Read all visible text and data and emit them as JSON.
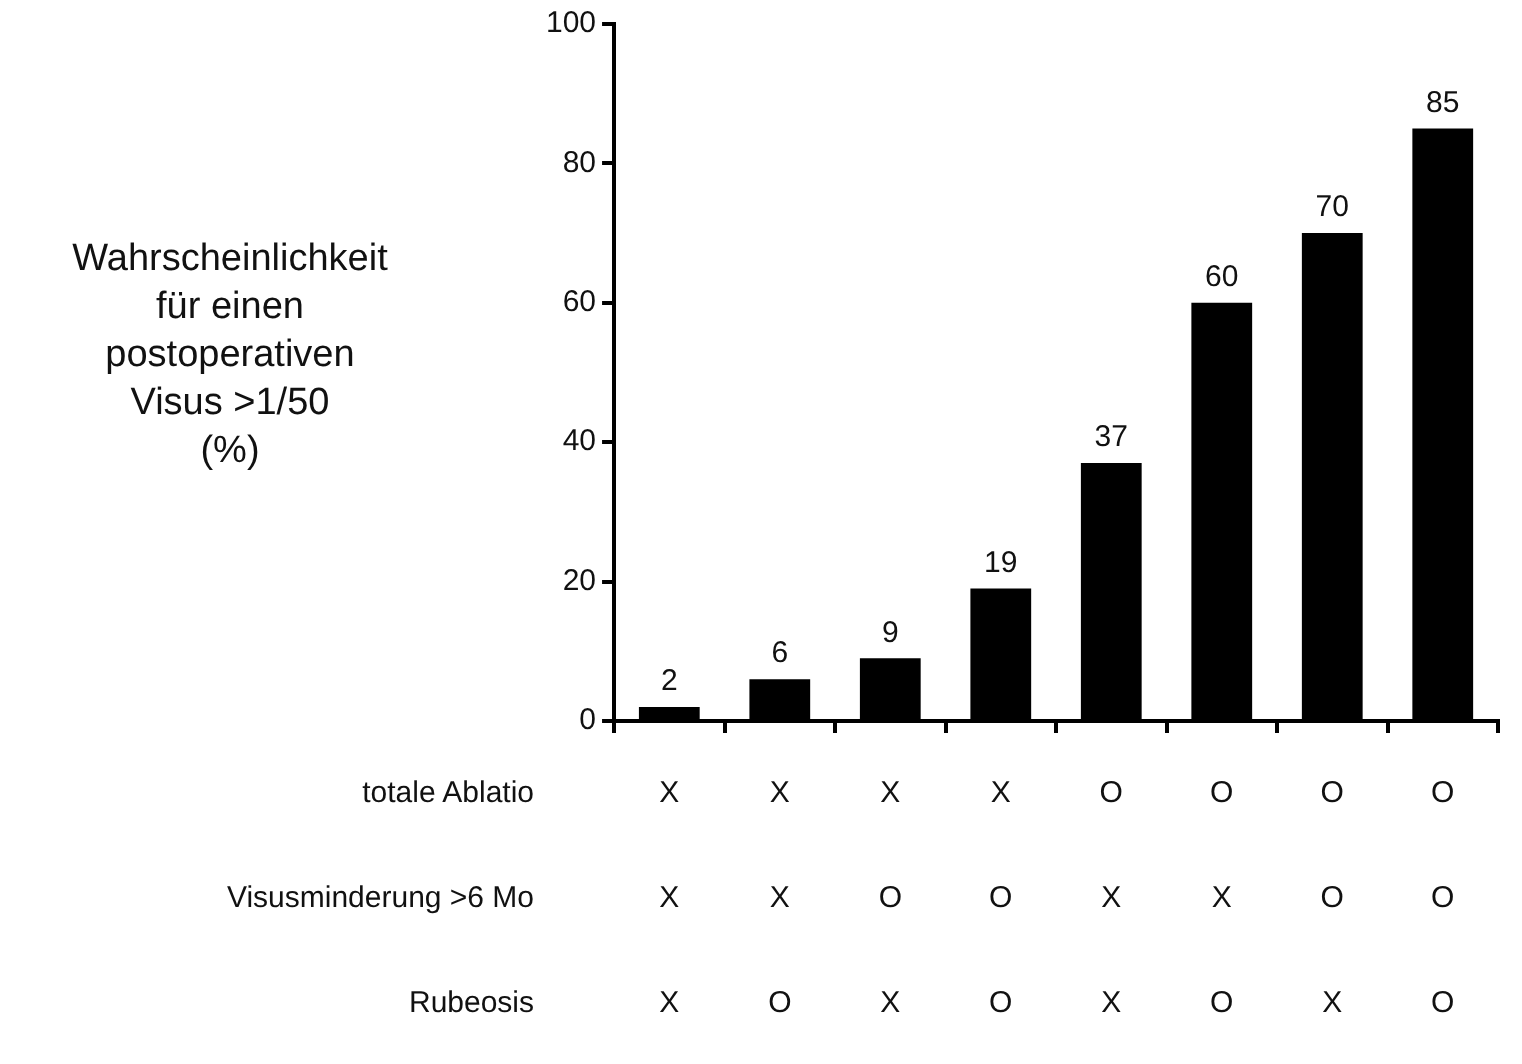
{
  "chart_data": {
    "type": "bar",
    "ylabel": "Wahrscheinlichkeit\nfür einen\npostoperativen\nVisus >1/50\n(%)",
    "categories": [
      "X\nX\nX",
      "X\nX\nO",
      "X\nO\nX",
      "X\nO\nO",
      "O\nX\nX",
      "O\nX\nO",
      "O\nO\nX",
      "O\nO\nO"
    ],
    "values": [
      2,
      6,
      9,
      19,
      37,
      60,
      70,
      85
    ],
    "color": "#000000",
    "ylim": [
      0,
      100
    ],
    "yticks": [
      0,
      20,
      40,
      60,
      80,
      100
    ],
    "grid": false,
    "legend": false,
    "data_labels": true,
    "annotations": [
      "totale Ablatio",
      "Visusminderung >6 Mo",
      "Rubeosis"
    ]
  }
}
